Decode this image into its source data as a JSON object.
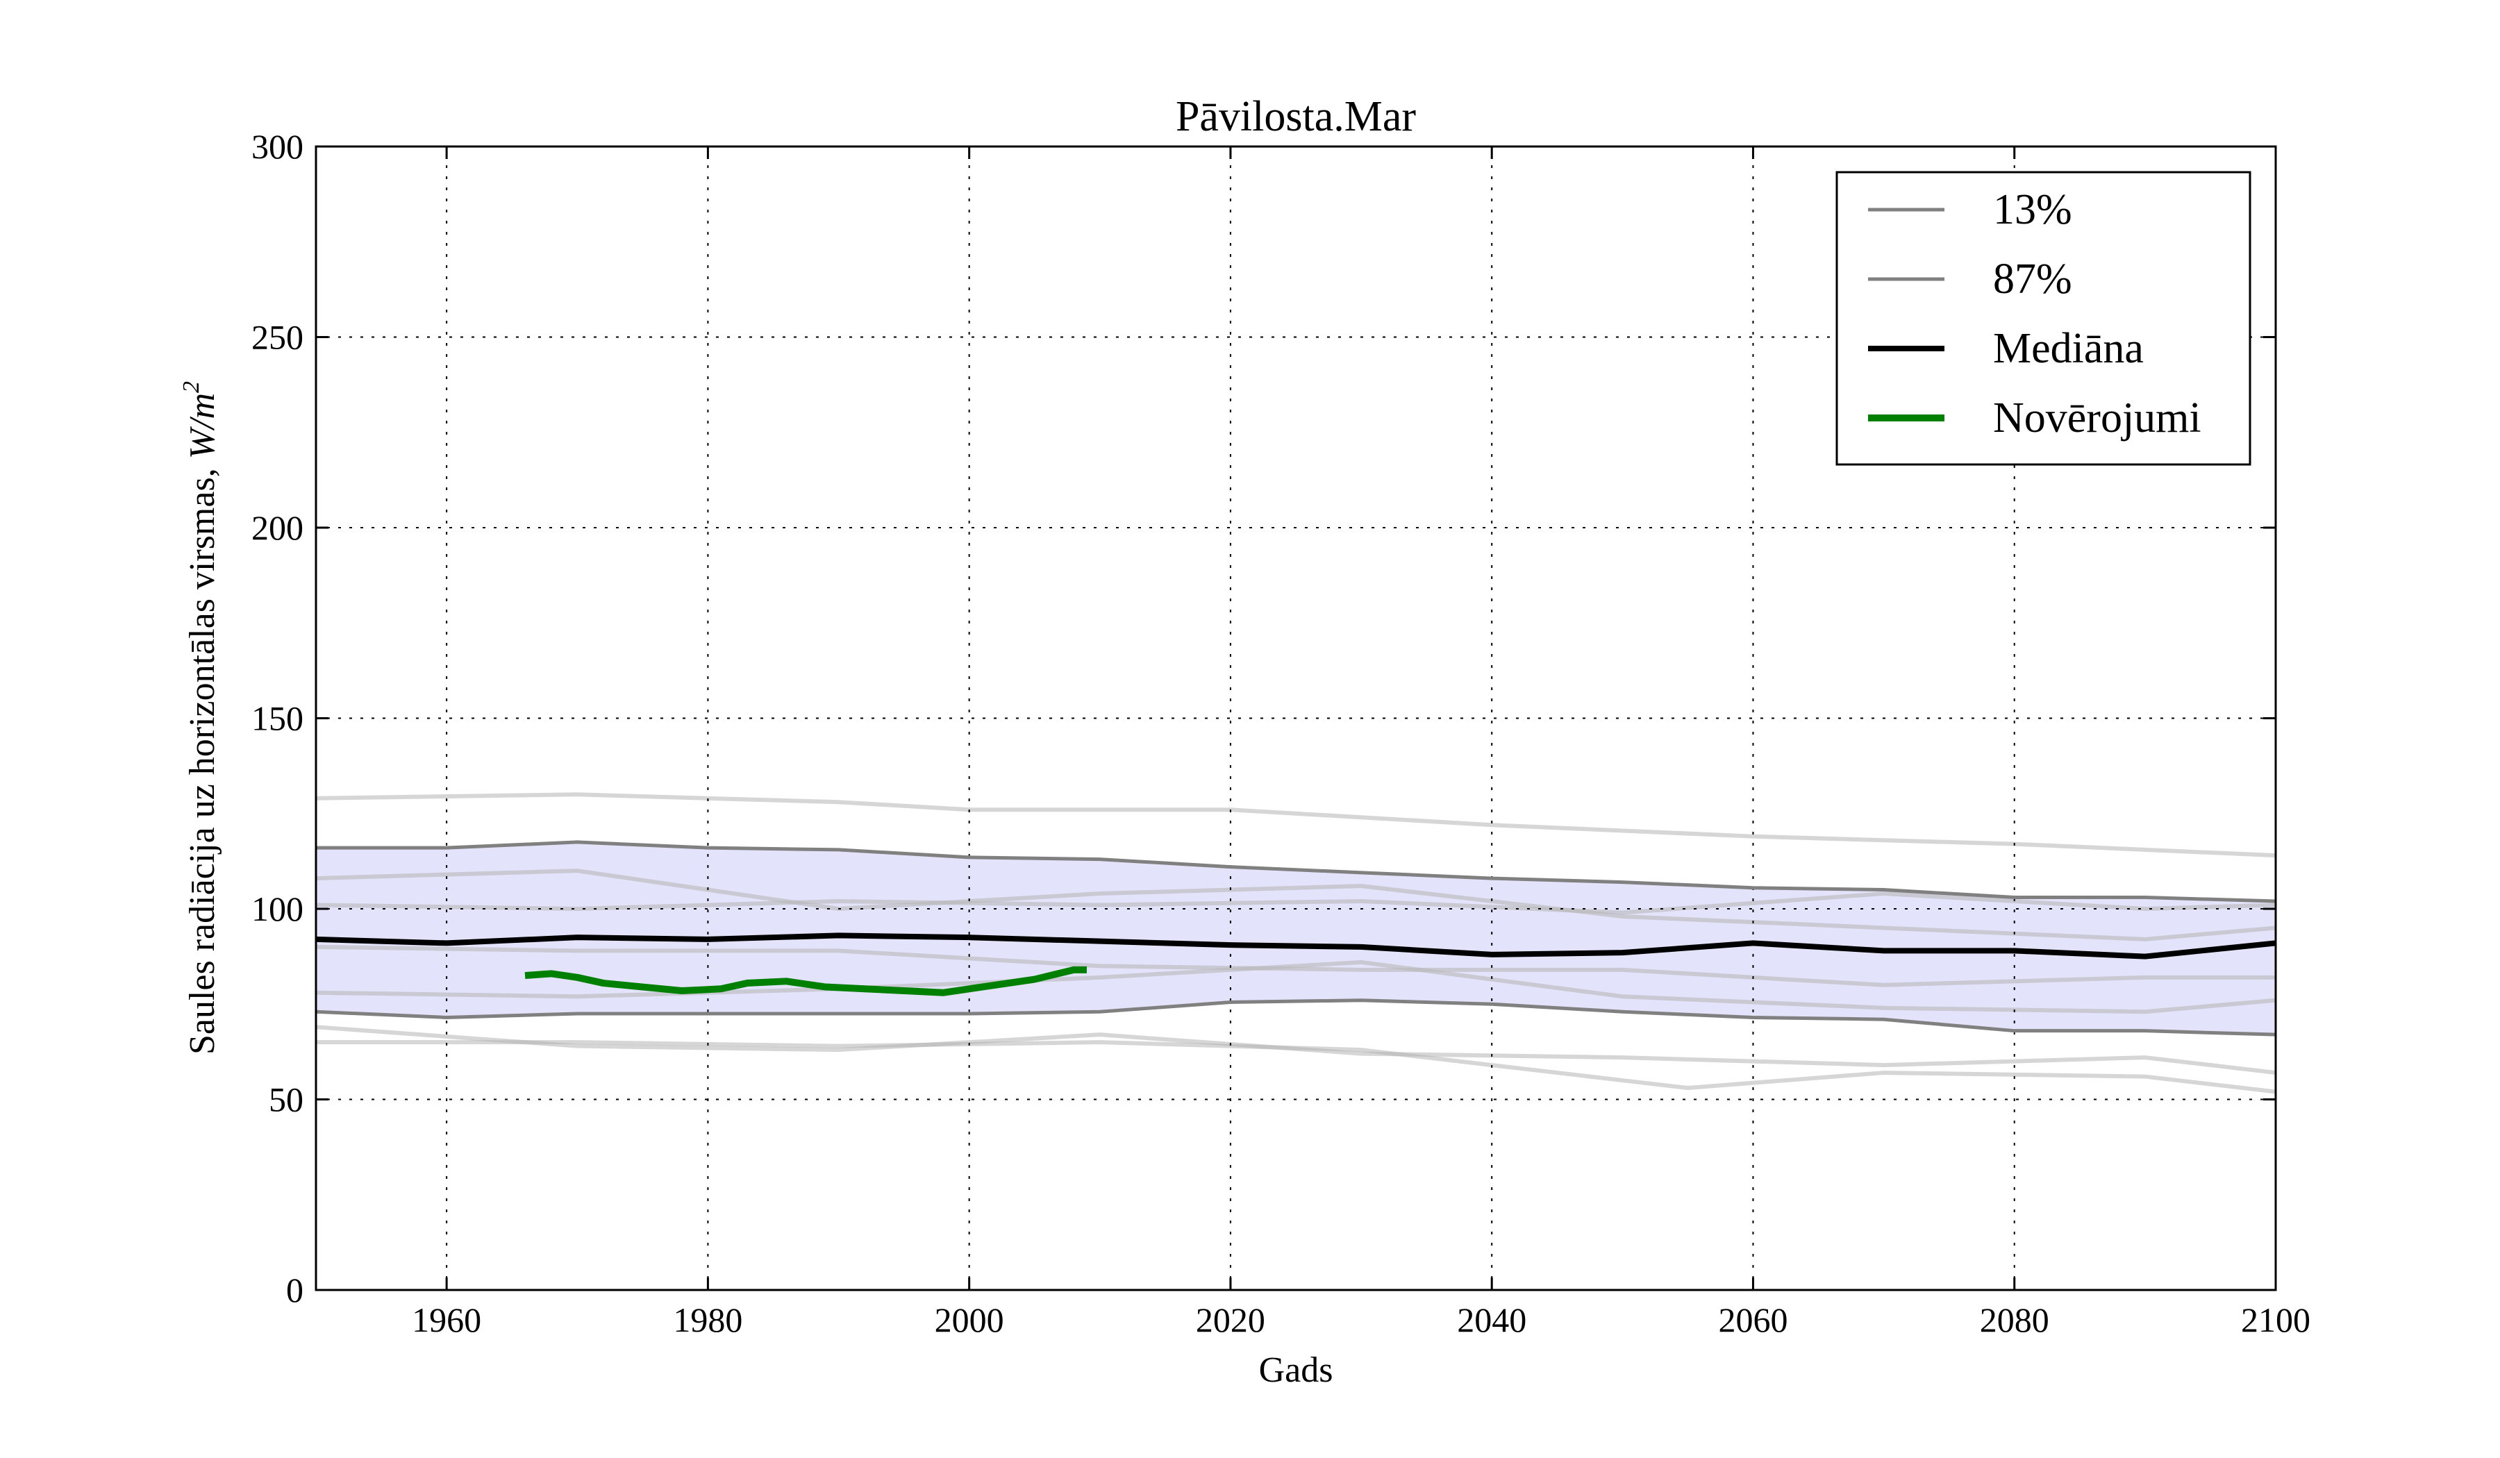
{
  "chart_data": {
    "type": "line",
    "title": "Pāvilosta.Mar",
    "xlabel": "Gads",
    "ylabel": "Saules radiācija uz horizontālas virsmas, ",
    "ylabel_unit": "W/m",
    "ylabel_unit_exp": "2",
    "xlim": [
      1950,
      2100
    ],
    "ylim": [
      0,
      300
    ],
    "xticks": [
      "1960",
      "1980",
      "2000",
      "2020",
      "2040",
      "2060",
      "2080",
      "2100"
    ],
    "yticks": [
      "0",
      "50",
      "100",
      "150",
      "200",
      "250",
      "300"
    ],
    "grid": true,
    "legend_placement": "top-right",
    "band_color": "#e3e3fb",
    "series": [
      {
        "name": "13%",
        "color": "#808080",
        "x": [
          1950,
          1960,
          1970,
          1980,
          1990,
          2000,
          2010,
          2020,
          2030,
          2040,
          2050,
          2060,
          2070,
          2080,
          2090,
          2100
        ],
        "y": [
          73,
          71.5,
          72.5,
          72.5,
          72.5,
          72.5,
          73,
          75.5,
          76,
          75,
          73,
          71.5,
          71,
          68,
          68,
          67
        ]
      },
      {
        "name": "87%",
        "color": "#808080",
        "x": [
          1950,
          1960,
          1970,
          1980,
          1990,
          2000,
          2010,
          2020,
          2030,
          2040,
          2050,
          2060,
          2070,
          2080,
          2090,
          2100
        ],
        "y": [
          116,
          116,
          117.5,
          116,
          115.5,
          113.5,
          113,
          111,
          109.5,
          108,
          107,
          105.5,
          105,
          103,
          103,
          102
        ]
      },
      {
        "name": "Mediāna",
        "color": "#000000",
        "x": [
          1950,
          1960,
          1970,
          1980,
          1990,
          2000,
          2010,
          2020,
          2030,
          2040,
          2050,
          2060,
          2070,
          2080,
          2090,
          2100
        ],
        "y": [
          92,
          91,
          92.5,
          92,
          93,
          92.5,
          91.5,
          90.5,
          90,
          88,
          88.5,
          91,
          89,
          89,
          87.5,
          91
        ]
      },
      {
        "name": "Novērojumi",
        "color": "#008000",
        "x": [
          1966,
          1968,
          1970,
          1972,
          1975,
          1978,
          1981,
          1983,
          1986,
          1989,
          1992,
          1995,
          1998,
          2000,
          2005,
          2008,
          2009
        ],
        "y": [
          82.5,
          83,
          82,
          80.5,
          79.5,
          78.5,
          79,
          80.5,
          81,
          79.5,
          79,
          78.5,
          78,
          79,
          81.5,
          84,
          84
        ]
      }
    ],
    "ensemble_members": [
      {
        "x": [
          1950,
          1970,
          1990,
          2000,
          2020,
          2040,
          2060,
          2080,
          2100
        ],
        "y": [
          129,
          130,
          128,
          126,
          126,
          122,
          119,
          117,
          114
        ]
      },
      {
        "x": [
          1950,
          1970,
          1990,
          2010,
          2030,
          2050,
          2055,
          2070,
          2090,
          2100
        ],
        "y": [
          65,
          65,
          64,
          65,
          63,
          55,
          53,
          57,
          56,
          52
        ]
      },
      {
        "x": [
          1950,
          1970,
          1990,
          2010,
          2030,
          2050,
          2070,
          2090,
          2100
        ],
        "y": [
          69,
          64,
          63,
          67,
          62,
          61,
          59,
          61,
          57
        ]
      },
      {
        "x": [
          1950,
          1970,
          1990,
          2010,
          2030,
          2050,
          2070,
          2090,
          2100
        ],
        "y": [
          108,
          110,
          100,
          104,
          106,
          98,
          95,
          92,
          95
        ]
      },
      {
        "x": [
          1950,
          1970,
          1990,
          2010,
          2030,
          2050,
          2070,
          2090,
          2100
        ],
        "y": [
          90,
          89,
          89,
          85,
          84,
          84,
          80,
          82,
          82
        ]
      },
      {
        "x": [
          1950,
          1970,
          1990,
          2010,
          2030,
          2050,
          2070,
          2090,
          2100
        ],
        "y": [
          101,
          100,
          102,
          101,
          102,
          99,
          104,
          100,
          101
        ]
      },
      {
        "x": [
          1950,
          1970,
          1990,
          2010,
          2030,
          2050,
          2070,
          2090,
          2100
        ],
        "y": [
          78,
          77,
          79,
          82,
          86,
          77,
          74,
          73,
          76
        ]
      }
    ]
  }
}
